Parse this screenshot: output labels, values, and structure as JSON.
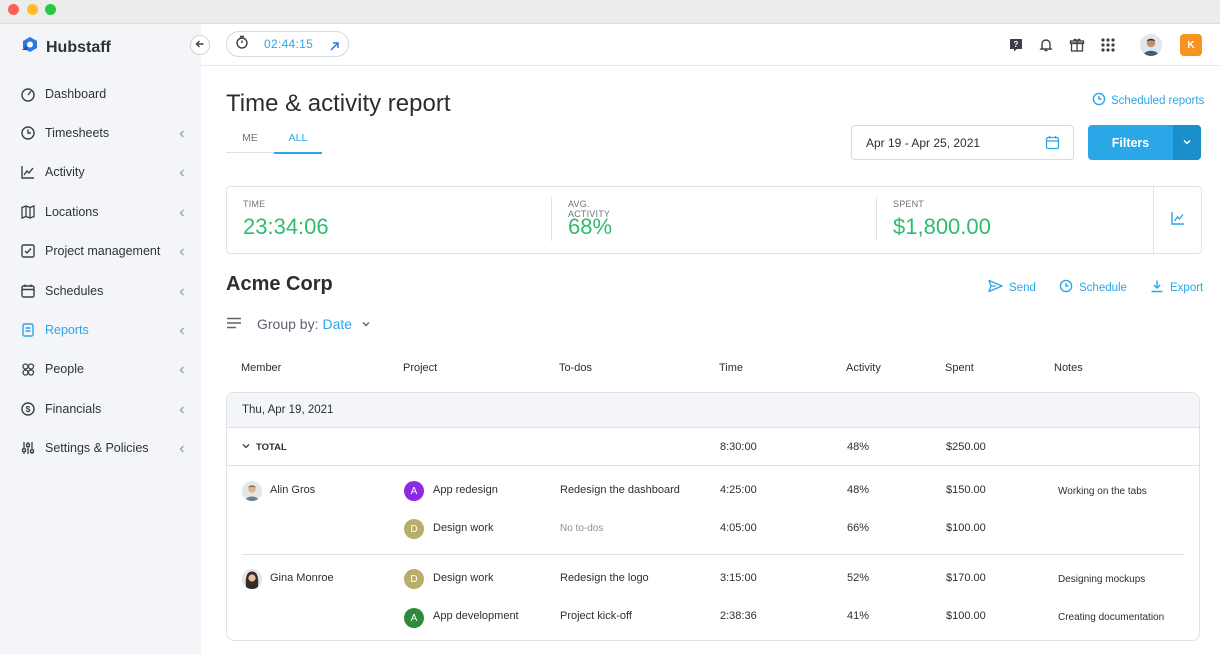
{
  "window": {
    "controls": [
      "close",
      "minimize",
      "maximize"
    ]
  },
  "app": {
    "name": "Hubstaff",
    "logo_icon": "hubstaff-logo-icon"
  },
  "sidebar": {
    "items": [
      {
        "label": "Dashboard",
        "icon": "dashboard-icon",
        "has_chevron": false
      },
      {
        "label": "Timesheets",
        "icon": "clock-icon",
        "has_chevron": true
      },
      {
        "label": "Activity",
        "icon": "activity-chart-icon",
        "has_chevron": true
      },
      {
        "label": "Locations",
        "icon": "map-icon",
        "has_chevron": true
      },
      {
        "label": "Project management",
        "icon": "checkbox-icon",
        "has_chevron": true
      },
      {
        "label": "Schedules",
        "icon": "calendar-icon",
        "has_chevron": true
      },
      {
        "label": "Reports",
        "icon": "report-icon",
        "has_chevron": true,
        "active": true
      },
      {
        "label": "People",
        "icon": "people-icon",
        "has_chevron": true
      },
      {
        "label": "Financials",
        "icon": "dollar-icon",
        "has_chevron": true
      },
      {
        "label": "Settings & Policies",
        "icon": "sliders-icon",
        "has_chevron": true
      }
    ]
  },
  "topbar": {
    "timer": "02:44:15",
    "icons": [
      "help-icon",
      "bell-icon",
      "gift-icon",
      "apps-grid-icon"
    ],
    "org_initial": "K"
  },
  "page": {
    "title": "Time & activity report",
    "scheduled_reports": "Scheduled reports",
    "tabs": [
      {
        "label": "ME",
        "active": false
      },
      {
        "label": "ALL",
        "active": true
      }
    ],
    "date_range": "Apr 19 - Apr 25, 2021",
    "filters_label": "Filters"
  },
  "summary": {
    "time_label": "TIME",
    "time_value": "23:34:06",
    "activity_label": "AVG. ACTIVITY",
    "activity_value": "68%",
    "spent_label": "SPENT",
    "spent_value": "$1,800.00"
  },
  "section": {
    "org_name": "Acme Corp",
    "actions": {
      "send": "Send",
      "schedule": "Schedule",
      "export": "Export"
    },
    "group_by_label": "Group by:",
    "group_by_value": "Date"
  },
  "table": {
    "headers": {
      "member": "Member",
      "project": "Project",
      "todos": "To-dos",
      "time": "Time",
      "activity": "Activity",
      "spent": "Spent",
      "notes": "Notes"
    },
    "day": "Thu, Apr 19, 2021",
    "total": {
      "label": "TOTAL",
      "time": "8:30:00",
      "activity": "48%",
      "spent": "$250.00"
    },
    "rows": [
      {
        "member": "Alin Gros",
        "project": "App redesign",
        "project_initial": "A",
        "project_color": "#8a2be2",
        "todo": "Redesign the dashboard",
        "todo_muted": false,
        "time": "4:25:00",
        "activity": "48%",
        "spent": "$150.00",
        "note": "Working on the tabs"
      },
      {
        "member": "",
        "project": "Design work",
        "project_initial": "D",
        "project_color": "#b8ae6a",
        "todo": "No to-dos",
        "todo_muted": true,
        "time": "4:05:00",
        "activity": "66%",
        "spent": "$100.00",
        "note": ""
      },
      {
        "member": "Gina Monroe",
        "project": "Design work",
        "project_initial": "D",
        "project_color": "#b8ae6a",
        "todo": "Redesign the logo",
        "todo_muted": false,
        "time": "3:15:00",
        "activity": "52%",
        "spent": "$170.00",
        "note": "Designing mockups"
      },
      {
        "member": "",
        "project": "App development",
        "project_initial": "A",
        "project_color": "#2e8b3a",
        "todo": "Project kick-off",
        "todo_muted": false,
        "time": "2:38:36",
        "activity": "41%",
        "spent": "$100.00",
        "note": "Creating documentation"
      }
    ]
  },
  "colors": {
    "accent": "#2aa7e6",
    "positive": "#2dbd6e",
    "org_badge": "#f7931e"
  }
}
